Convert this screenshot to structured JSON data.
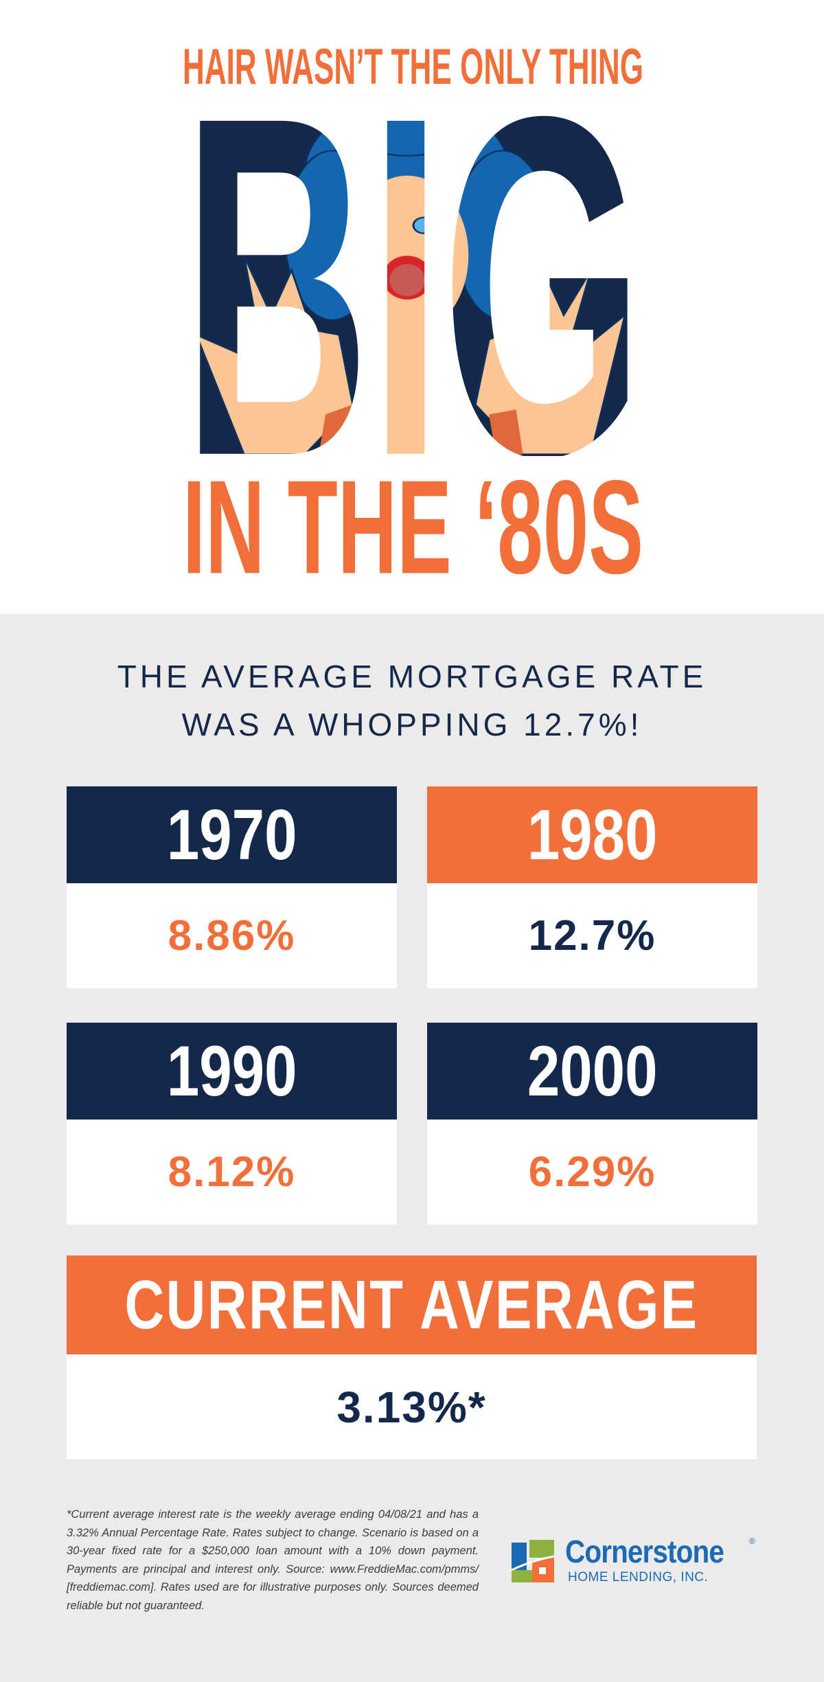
{
  "hero": {
    "kicker": "HAIR WASN’T THE ONLY THING",
    "big_word": "BIG",
    "tagline": "IN THE ‘80S"
  },
  "headline": {
    "line1": "THE AVERAGE MORTGAGE RATE",
    "line2": "WAS A WHOPPING 12.7%!"
  },
  "rates": [
    {
      "year": "1970",
      "rate": "8.86%"
    },
    {
      "year": "1980",
      "rate": "12.7%"
    },
    {
      "year": "1990",
      "rate": "8.12%"
    },
    {
      "year": "2000",
      "rate": "6.29%"
    }
  ],
  "current": {
    "label": "CURRENT AVERAGE",
    "rate": "3.13%*"
  },
  "footnote": "*Current average interest rate is the weekly average ending 04/08/21 and has a 3.32% Annual Percentage Rate. Rates subject to change. Scenario is based on a 30-year fixed rate for a $250,000 loan amount with a 10% down payment. Payments are principal and interest only. Source: www.FreddieMac.com/pmms/ [freddiemac.com]. Rates used are for illustrative purposes only. Sources deemed reliable but not guaranteed.",
  "logo": {
    "name": "Cornerstone",
    "registered": "®",
    "subtitle": "HOME LENDING, INC."
  },
  "colors": {
    "navy": "#14284b",
    "orange": "#f26f3a",
    "background": "#ecebea",
    "logo_blue": "#1a6bb5"
  }
}
